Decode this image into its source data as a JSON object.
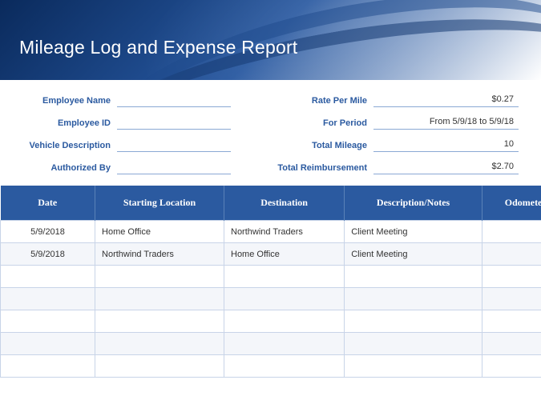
{
  "banner": {
    "title": "Mileage Log and Expense Report",
    "bg_gradient_from": "#0a2a5c",
    "bg_gradient_mid": "#1e4a8c",
    "bg_gradient_to": "#ffffff",
    "title_color": "#ffffff",
    "title_fontsize": 23
  },
  "meta": {
    "left": [
      {
        "label": "Employee Name",
        "value": ""
      },
      {
        "label": "Employee ID",
        "value": ""
      },
      {
        "label": "Vehicle Description",
        "value": ""
      },
      {
        "label": "Authorized By",
        "value": ""
      }
    ],
    "right": [
      {
        "label": "Rate Per Mile",
        "value": "$0.27"
      },
      {
        "label": "For Period",
        "value": "From 5/9/18 to 5/9/18"
      },
      {
        "label": "Total Mileage",
        "value": "10"
      },
      {
        "label": "Total Reimbursement",
        "value": "$2.70"
      }
    ],
    "label_color": "#2b5aa0",
    "label_fontsize": 11,
    "line_color": "#8aa8d4"
  },
  "table": {
    "header_bg": "#2b5aa0",
    "header_color": "#ffffff",
    "header_fontsize": 12,
    "row_alt_bg": "#f4f6fa",
    "border_color": "#c8d4e8",
    "columns": [
      "Date",
      "Starting Location",
      "Destination",
      "Description/Notes",
      "Odometer S"
    ],
    "rows": [
      [
        "5/9/2018",
        "Home Office",
        "Northwind Traders",
        "Client Meeting",
        ""
      ],
      [
        "5/9/2018",
        "Northwind Traders",
        "Home Office",
        "Client Meeting",
        ""
      ],
      [
        "",
        "",
        "",
        "",
        ""
      ],
      [
        "",
        "",
        "",
        "",
        ""
      ],
      [
        "",
        "",
        "",
        "",
        ""
      ],
      [
        "",
        "",
        "",
        "",
        ""
      ],
      [
        "",
        "",
        "",
        "",
        ""
      ]
    ]
  }
}
